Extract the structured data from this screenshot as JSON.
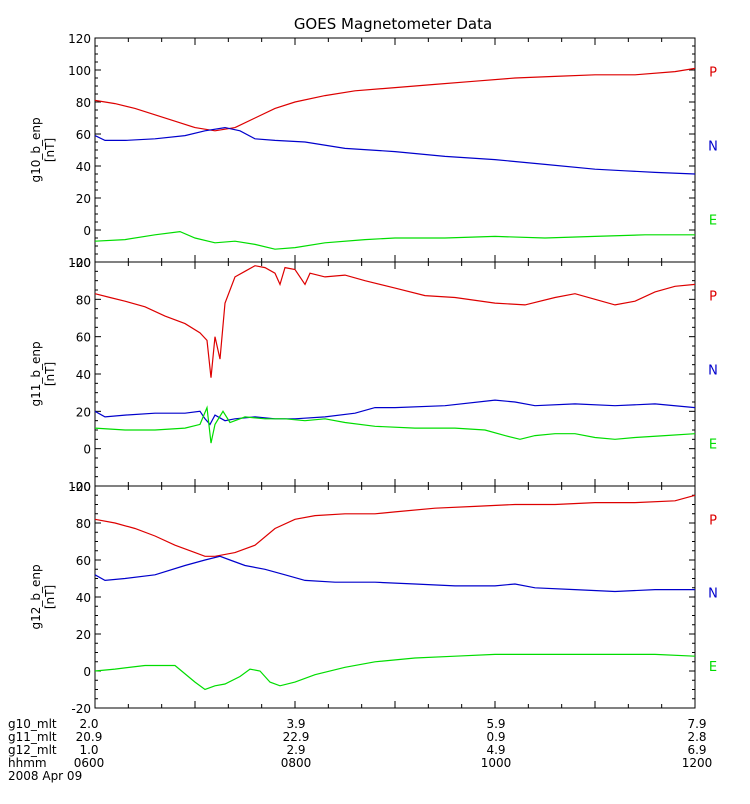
{
  "chart_data": [
    {
      "type": "line",
      "title": "GOES Magnetometer Data",
      "ylabel": "g10_b_enp",
      "yunit": "[nT]",
      "ylim": [
        -20,
        120
      ],
      "yticks": [
        -20,
        0,
        20,
        40,
        60,
        80,
        100,
        120
      ],
      "xlim": [
        0,
        6
      ],
      "grid": false,
      "legend_placement": "right",
      "series": [
        {
          "name": "P",
          "color": "#dd0000",
          "points": [
            [
              0.0,
              81
            ],
            [
              0.2,
              79
            ],
            [
              0.4,
              76
            ],
            [
              0.6,
              72
            ],
            [
              0.8,
              68
            ],
            [
              1.0,
              64
            ],
            [
              1.2,
              62
            ],
            [
              1.4,
              64
            ],
            [
              1.6,
              70
            ],
            [
              1.8,
              76
            ],
            [
              2.0,
              80
            ],
            [
              2.3,
              84
            ],
            [
              2.6,
              87
            ],
            [
              3.0,
              89
            ],
            [
              3.4,
              91
            ],
            [
              3.8,
              93
            ],
            [
              4.2,
              95
            ],
            [
              4.6,
              96
            ],
            [
              5.0,
              97
            ],
            [
              5.4,
              97
            ],
            [
              5.8,
              99
            ],
            [
              6.0,
              101
            ]
          ]
        },
        {
          "name": "N",
          "color": "#0000cc",
          "points": [
            [
              0.0,
              59
            ],
            [
              0.1,
              56
            ],
            [
              0.3,
              56
            ],
            [
              0.6,
              57
            ],
            [
              0.9,
              59
            ],
            [
              1.1,
              62
            ],
            [
              1.3,
              64
            ],
            [
              1.45,
              62
            ],
            [
              1.6,
              57
            ],
            [
              1.8,
              56
            ],
            [
              2.1,
              55
            ],
            [
              2.5,
              51
            ],
            [
              3.0,
              49
            ],
            [
              3.5,
              46
            ],
            [
              4.0,
              44
            ],
            [
              4.5,
              41
            ],
            [
              5.0,
              38
            ],
            [
              5.3,
              37
            ],
            [
              5.6,
              36
            ],
            [
              6.0,
              35
            ]
          ]
        },
        {
          "name": "E",
          "color": "#00dd00",
          "points": [
            [
              0.0,
              -7
            ],
            [
              0.3,
              -6
            ],
            [
              0.6,
              -3
            ],
            [
              0.85,
              -1
            ],
            [
              1.0,
              -5
            ],
            [
              1.2,
              -8
            ],
            [
              1.4,
              -7
            ],
            [
              1.6,
              -9
            ],
            [
              1.8,
              -12
            ],
            [
              2.0,
              -11
            ],
            [
              2.3,
              -8
            ],
            [
              2.7,
              -6
            ],
            [
              3.0,
              -5
            ],
            [
              3.5,
              -5
            ],
            [
              4.0,
              -4
            ],
            [
              4.5,
              -5
            ],
            [
              5.0,
              -4
            ],
            [
              5.5,
              -3
            ],
            [
              6.0,
              -3
            ]
          ]
        }
      ]
    },
    {
      "type": "line",
      "ylabel": "g11_b_enp",
      "yunit": "[nT]",
      "ylim": [
        -20,
        100
      ],
      "yticks": [
        -20,
        0,
        20,
        40,
        60,
        80,
        100
      ],
      "xlim": [
        0,
        6
      ],
      "grid": false,
      "legend_placement": "right",
      "series": [
        {
          "name": "P",
          "color": "#dd0000",
          "points": [
            [
              0.0,
              83
            ],
            [
              0.15,
              81
            ],
            [
              0.3,
              79
            ],
            [
              0.5,
              76
            ],
            [
              0.7,
              71
            ],
            [
              0.9,
              67
            ],
            [
              1.05,
              62
            ],
            [
              1.12,
              58
            ],
            [
              1.16,
              38
            ],
            [
              1.2,
              60
            ],
            [
              1.25,
              48
            ],
            [
              1.3,
              78
            ],
            [
              1.4,
              92
            ],
            [
              1.5,
              95
            ],
            [
              1.6,
              98
            ],
            [
              1.7,
              97
            ],
            [
              1.8,
              94
            ],
            [
              1.85,
              88
            ],
            [
              1.9,
              97
            ],
            [
              2.0,
              96
            ],
            [
              2.1,
              88
            ],
            [
              2.15,
              94
            ],
            [
              2.3,
              92
            ],
            [
              2.5,
              93
            ],
            [
              2.7,
              90
            ],
            [
              3.0,
              86
            ],
            [
              3.3,
              82
            ],
            [
              3.6,
              81
            ],
            [
              4.0,
              78
            ],
            [
              4.3,
              77
            ],
            [
              4.6,
              81
            ],
            [
              4.8,
              83
            ],
            [
              5.0,
              80
            ],
            [
              5.2,
              77
            ],
            [
              5.4,
              79
            ],
            [
              5.6,
              84
            ],
            [
              5.8,
              87
            ],
            [
              6.0,
              88
            ]
          ]
        },
        {
          "name": "N",
          "color": "#0000cc",
          "points": [
            [
              0.0,
              20
            ],
            [
              0.1,
              17
            ],
            [
              0.3,
              18
            ],
            [
              0.6,
              19
            ],
            [
              0.9,
              19
            ],
            [
              1.05,
              20
            ],
            [
              1.1,
              16
            ],
            [
              1.15,
              13
            ],
            [
              1.2,
              18
            ],
            [
              1.3,
              15
            ],
            [
              1.4,
              16
            ],
            [
              1.6,
              17
            ],
            [
              1.8,
              16
            ],
            [
              2.0,
              16
            ],
            [
              2.3,
              17
            ],
            [
              2.6,
              19
            ],
            [
              2.8,
              22
            ],
            [
              3.0,
              22
            ],
            [
              3.5,
              23
            ],
            [
              4.0,
              26
            ],
            [
              4.2,
              25
            ],
            [
              4.4,
              23
            ],
            [
              4.8,
              24
            ],
            [
              5.2,
              23
            ],
            [
              5.6,
              24
            ],
            [
              6.0,
              22
            ]
          ]
        },
        {
          "name": "E",
          "color": "#00dd00",
          "points": [
            [
              0.0,
              11
            ],
            [
              0.3,
              10
            ],
            [
              0.6,
              10
            ],
            [
              0.9,
              11
            ],
            [
              1.05,
              13
            ],
            [
              1.12,
              22
            ],
            [
              1.16,
              3
            ],
            [
              1.2,
              13
            ],
            [
              1.28,
              20
            ],
            [
              1.35,
              14
            ],
            [
              1.5,
              17
            ],
            [
              1.7,
              16
            ],
            [
              1.9,
              16
            ],
            [
              2.1,
              15
            ],
            [
              2.3,
              16
            ],
            [
              2.5,
              14
            ],
            [
              2.8,
              12
            ],
            [
              3.2,
              11
            ],
            [
              3.6,
              11
            ],
            [
              3.9,
              10
            ],
            [
              4.1,
              7
            ],
            [
              4.25,
              5
            ],
            [
              4.4,
              7
            ],
            [
              4.6,
              8
            ],
            [
              4.8,
              8
            ],
            [
              5.0,
              6
            ],
            [
              5.2,
              5
            ],
            [
              5.4,
              6
            ],
            [
              5.7,
              7
            ],
            [
              6.0,
              8
            ]
          ]
        }
      ]
    },
    {
      "type": "line",
      "ylabel": "g12_b_enp",
      "yunit": "[nT]",
      "ylim": [
        -20,
        100
      ],
      "yticks": [
        -20,
        0,
        20,
        40,
        60,
        80,
        100
      ],
      "xlim": [
        0,
        6
      ],
      "grid": false,
      "legend_placement": "right",
      "series": [
        {
          "name": "P",
          "color": "#dd0000",
          "points": [
            [
              0.0,
              82
            ],
            [
              0.2,
              80
            ],
            [
              0.4,
              77
            ],
            [
              0.6,
              73
            ],
            [
              0.8,
              68
            ],
            [
              1.0,
              64
            ],
            [
              1.1,
              62
            ],
            [
              1.2,
              62
            ],
            [
              1.4,
              64
            ],
            [
              1.6,
              68
            ],
            [
              1.8,
              77
            ],
            [
              2.0,
              82
            ],
            [
              2.2,
              84
            ],
            [
              2.5,
              85
            ],
            [
              2.8,
              85
            ],
            [
              3.0,
              86
            ],
            [
              3.4,
              88
            ],
            [
              3.8,
              89
            ],
            [
              4.2,
              90
            ],
            [
              4.6,
              90
            ],
            [
              5.0,
              91
            ],
            [
              5.4,
              91
            ],
            [
              5.8,
              92
            ],
            [
              6.0,
              95
            ]
          ]
        },
        {
          "name": "N",
          "color": "#0000cc",
          "points": [
            [
              0.0,
              52
            ],
            [
              0.1,
              49
            ],
            [
              0.3,
              50
            ],
            [
              0.6,
              52
            ],
            [
              0.9,
              57
            ],
            [
              1.1,
              60
            ],
            [
              1.25,
              62
            ],
            [
              1.35,
              60
            ],
            [
              1.5,
              57
            ],
            [
              1.7,
              55
            ],
            [
              1.9,
              52
            ],
            [
              2.1,
              49
            ],
            [
              2.4,
              48
            ],
            [
              2.8,
              48
            ],
            [
              3.2,
              47
            ],
            [
              3.6,
              46
            ],
            [
              4.0,
              46
            ],
            [
              4.2,
              47
            ],
            [
              4.4,
              45
            ],
            [
              4.8,
              44
            ],
            [
              5.2,
              43
            ],
            [
              5.6,
              44
            ],
            [
              6.0,
              44
            ]
          ]
        },
        {
          "name": "E",
          "color": "#00dd00",
          "points": [
            [
              0.0,
              0
            ],
            [
              0.2,
              1
            ],
            [
              0.5,
              3
            ],
            [
              0.8,
              3
            ],
            [
              1.0,
              -6
            ],
            [
              1.1,
              -10
            ],
            [
              1.2,
              -8
            ],
            [
              1.3,
              -7
            ],
            [
              1.45,
              -3
            ],
            [
              1.55,
              1
            ],
            [
              1.65,
              0
            ],
            [
              1.75,
              -6
            ],
            [
              1.85,
              -8
            ],
            [
              2.0,
              -6
            ],
            [
              2.2,
              -2
            ],
            [
              2.5,
              2
            ],
            [
              2.8,
              5
            ],
            [
              3.2,
              7
            ],
            [
              3.6,
              8
            ],
            [
              4.0,
              9
            ],
            [
              4.4,
              9
            ],
            [
              4.8,
              9
            ],
            [
              5.2,
              9
            ],
            [
              5.6,
              9
            ],
            [
              6.0,
              8
            ]
          ]
        }
      ]
    }
  ],
  "footer": {
    "rows": [
      {
        "label": "g10_mlt",
        "values": [
          "2.0",
          "3.9",
          "5.9",
          "7.9"
        ]
      },
      {
        "label": "g11_mlt",
        "values": [
          "20.9",
          "22.9",
          "0.9",
          "2.8"
        ]
      },
      {
        "label": "g12_mlt",
        "values": [
          "1.0",
          "2.9",
          "4.9",
          "6.9"
        ]
      },
      {
        "label": "hhmm",
        "values": [
          "0600",
          "0800",
          "1000",
          "1200"
        ]
      }
    ],
    "date": "2008 Apr 09"
  }
}
